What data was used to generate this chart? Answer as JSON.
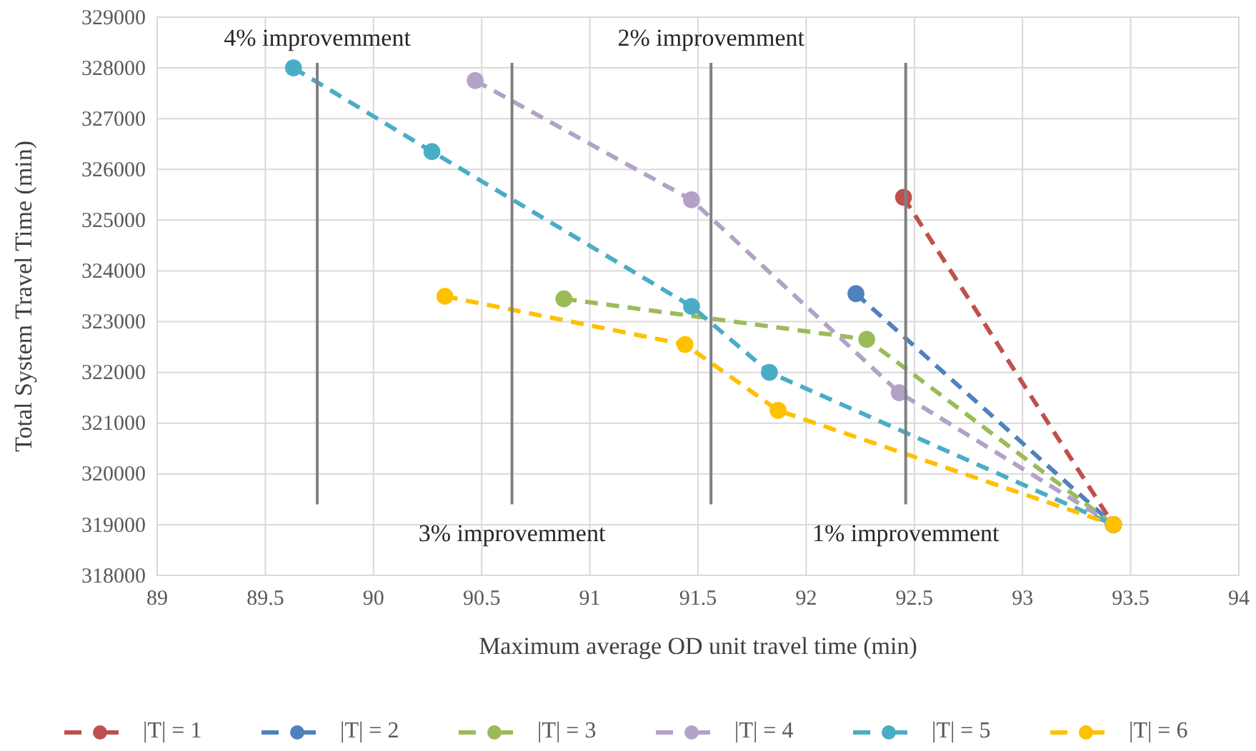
{
  "chart_data": {
    "type": "line",
    "xlabel": "Maximum average OD unit travel time (min)",
    "ylabel": "Total System Travel Time (min)",
    "xlim": [
      89,
      94
    ],
    "xticks": [
      89,
      89.5,
      90,
      90.5,
      91,
      91.5,
      92,
      92.5,
      93,
      93.5,
      94
    ],
    "ylim": [
      318000,
      329000
    ],
    "yticks": [
      318000,
      319000,
      320000,
      321000,
      322000,
      323000,
      324000,
      325000,
      326000,
      327000,
      328000,
      329000
    ],
    "grid": true,
    "legend": "bottom",
    "marker": "circle",
    "line_style": "dashed",
    "series": [
      {
        "name": "|T| = 1",
        "color": "#c0504d",
        "x": [
          92.45,
          93.42
        ],
        "values": [
          325450,
          319000
        ]
      },
      {
        "name": "|T| = 2",
        "color": "#4f81bd",
        "x": [
          92.23,
          93.42
        ],
        "values": [
          323550,
          319000
        ]
      },
      {
        "name": "|T| = 3",
        "color": "#9bbb59",
        "x": [
          90.88,
          92.28,
          93.42
        ],
        "values": [
          323450,
          322650,
          319000
        ]
      },
      {
        "name": "|T| = 4",
        "color": "#b3a2c7",
        "x": [
          90.47,
          91.47,
          92.43,
          93.42
        ],
        "values": [
          327750,
          325400,
          321600,
          319000
        ]
      },
      {
        "name": "|T| = 5",
        "color": "#4bacc6",
        "x": [
          89.63,
          90.27,
          91.47,
          91.83,
          93.42
        ],
        "values": [
          328000,
          326350,
          323300,
          322000,
          319000
        ]
      },
      {
        "name": "|T| = 6",
        "color": "#ffc000",
        "x": [
          90.33,
          91.44,
          91.87,
          93.42
        ],
        "values": [
          323500,
          322550,
          321250,
          319000
        ]
      },
      {
        "color": "#808080",
        "marker": "none",
        "line_style": "solid",
        "x": [
          89.74,
          89.74
        ],
        "values": [
          328100,
          319400
        ]
      },
      {
        "color": "#808080",
        "marker": "none",
        "line_style": "solid",
        "x": [
          90.64,
          90.64
        ],
        "values": [
          328100,
          319400
        ]
      },
      {
        "color": "#808080",
        "marker": "none",
        "line_style": "solid",
        "x": [
          91.56,
          91.56
        ],
        "values": [
          328100,
          319400
        ]
      },
      {
        "color": "#808080",
        "marker": "none",
        "line_style": "solid",
        "x": [
          92.46,
          92.46
        ],
        "values": [
          328100,
          319400
        ]
      }
    ],
    "annotations": [
      {
        "text": "4% improvemment",
        "x": 89.74,
        "y": 328100
      },
      {
        "text": "2% improvemment",
        "x": 91.56,
        "y": 328100
      },
      {
        "text": "3% improvemment",
        "x": 90.64,
        "y": 319400
      },
      {
        "text": "1% improvemment",
        "x": 92.46,
        "y": 319400
      }
    ]
  }
}
